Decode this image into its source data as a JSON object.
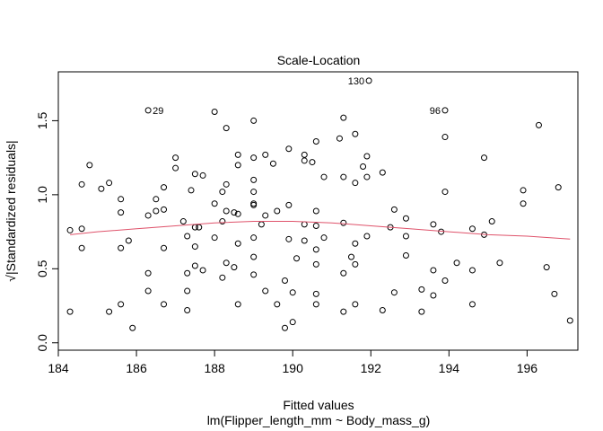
{
  "chart_data": {
    "type": "scatter",
    "title": "Scale-Location",
    "xlabel": "Fitted values",
    "subtitle": "lm(Flipper_length_mm ~ Body_mass_g)",
    "ylabel": "√|Standardized residuals|",
    "xlim": [
      184.0,
      197.3
    ],
    "ylim": [
      -0.05,
      1.83
    ],
    "x_ticks": [
      184,
      186,
      188,
      190,
      192,
      194,
      196
    ],
    "y_ticks": [
      0.0,
      0.5,
      1.0,
      1.5
    ],
    "grid": false,
    "colors": {
      "points": "#000000",
      "smoother": "#DF536B",
      "box": "#000000"
    },
    "labeled_points": [
      {
        "label": "29",
        "x": 186.3,
        "y": 1.57
      },
      {
        "label": "130",
        "x": 191.95,
        "y": 1.77
      },
      {
        "label": "96",
        "x": 193.9,
        "y": 1.57
      }
    ],
    "smoother": [
      [
        184.3,
        0.73
      ],
      [
        185.0,
        0.75
      ],
      [
        186.0,
        0.77
      ],
      [
        187.0,
        0.79
      ],
      [
        188.0,
        0.81
      ],
      [
        189.0,
        0.82
      ],
      [
        190.0,
        0.82
      ],
      [
        191.0,
        0.81
      ],
      [
        192.0,
        0.79
      ],
      [
        193.0,
        0.77
      ],
      [
        194.0,
        0.75
      ],
      [
        195.0,
        0.73
      ],
      [
        196.0,
        0.72
      ],
      [
        197.1,
        0.7
      ]
    ],
    "points": [
      [
        184.3,
        0.21
      ],
      [
        184.3,
        0.76
      ],
      [
        184.6,
        0.77
      ],
      [
        184.6,
        0.64
      ],
      [
        184.6,
        1.07
      ],
      [
        184.8,
        1.2
      ],
      [
        185.1,
        1.04
      ],
      [
        185.3,
        1.08
      ],
      [
        185.3,
        0.21
      ],
      [
        185.6,
        0.26
      ],
      [
        185.6,
        0.64
      ],
      [
        185.6,
        0.88
      ],
      [
        185.6,
        0.97
      ],
      [
        185.8,
        0.69
      ],
      [
        185.9,
        0.1
      ],
      [
        186.3,
        0.86
      ],
      [
        186.3,
        0.47
      ],
      [
        186.3,
        0.35
      ],
      [
        186.5,
        0.89
      ],
      [
        186.5,
        0.97
      ],
      [
        186.7,
        0.9
      ],
      [
        186.7,
        1.05
      ],
      [
        186.7,
        0.64
      ],
      [
        186.7,
        0.26
      ],
      [
        187.0,
        1.25
      ],
      [
        187.0,
        1.18
      ],
      [
        187.2,
        0.82
      ],
      [
        187.3,
        0.72
      ],
      [
        187.3,
        0.47
      ],
      [
        187.3,
        0.35
      ],
      [
        187.3,
        0.22
      ],
      [
        187.4,
        1.03
      ],
      [
        187.5,
        1.14
      ],
      [
        187.5,
        0.78
      ],
      [
        187.5,
        0.52
      ],
      [
        187.5,
        0.65
      ],
      [
        187.6,
        0.78
      ],
      [
        187.7,
        1.13
      ],
      [
        187.7,
        0.49
      ],
      [
        188.0,
        1.56
      ],
      [
        188.0,
        0.94
      ],
      [
        188.0,
        0.71
      ],
      [
        188.2,
        1.02
      ],
      [
        188.2,
        0.82
      ],
      [
        188.2,
        0.44
      ],
      [
        188.3,
        1.45
      ],
      [
        188.3,
        1.07
      ],
      [
        188.3,
        0.89
      ],
      [
        188.3,
        0.54
      ],
      [
        188.5,
        0.88
      ],
      [
        188.5,
        0.51
      ],
      [
        188.6,
        1.27
      ],
      [
        188.6,
        1.2
      ],
      [
        188.6,
        0.87
      ],
      [
        188.6,
        0.67
      ],
      [
        188.6,
        0.26
      ],
      [
        189.0,
        1.5
      ],
      [
        189.0,
        1.25
      ],
      [
        189.0,
        1.1
      ],
      [
        189.0,
        1.02
      ],
      [
        189.0,
        0.94
      ],
      [
        189.0,
        0.93
      ],
      [
        189.0,
        0.71
      ],
      [
        189.0,
        0.58
      ],
      [
        189.0,
        0.46
      ],
      [
        189.2,
        0.8
      ],
      [
        189.3,
        1.27
      ],
      [
        189.3,
        0.86
      ],
      [
        189.3,
        0.35
      ],
      [
        189.5,
        1.21
      ],
      [
        189.6,
        0.89
      ],
      [
        189.6,
        0.26
      ],
      [
        189.8,
        0.42
      ],
      [
        189.8,
        0.1
      ],
      [
        189.9,
        1.31
      ],
      [
        189.9,
        0.93
      ],
      [
        189.9,
        0.7
      ],
      [
        190.0,
        0.14
      ],
      [
        190.0,
        0.34
      ],
      [
        190.1,
        0.57
      ],
      [
        190.3,
        1.27
      ],
      [
        190.3,
        1.23
      ],
      [
        190.3,
        0.8
      ],
      [
        190.3,
        0.69
      ],
      [
        190.5,
        1.22
      ],
      [
        190.6,
        1.36
      ],
      [
        190.6,
        0.89
      ],
      [
        190.6,
        0.79
      ],
      [
        190.6,
        0.63
      ],
      [
        190.6,
        0.53
      ],
      [
        190.6,
        0.33
      ],
      [
        190.6,
        0.26
      ],
      [
        190.8,
        1.12
      ],
      [
        190.8,
        0.71
      ],
      [
        191.2,
        1.38
      ],
      [
        191.3,
        1.52
      ],
      [
        191.3,
        1.12
      ],
      [
        191.3,
        0.81
      ],
      [
        191.3,
        0.47
      ],
      [
        191.3,
        0.21
      ],
      [
        191.5,
        0.58
      ],
      [
        191.6,
        1.41
      ],
      [
        191.6,
        1.08
      ],
      [
        191.6,
        0.67
      ],
      [
        191.6,
        0.53
      ],
      [
        191.6,
        0.26
      ],
      [
        191.8,
        1.19
      ],
      [
        191.9,
        1.26
      ],
      [
        191.9,
        1.12
      ],
      [
        191.9,
        0.72
      ],
      [
        192.3,
        1.15
      ],
      [
        192.3,
        0.22
      ],
      [
        192.5,
        0.78
      ],
      [
        192.6,
        0.9
      ],
      [
        192.6,
        0.34
      ],
      [
        192.9,
        0.84
      ],
      [
        192.9,
        0.72
      ],
      [
        192.9,
        0.59
      ],
      [
        193.3,
        0.36
      ],
      [
        193.3,
        0.21
      ],
      [
        193.6,
        0.8
      ],
      [
        193.6,
        0.49
      ],
      [
        193.6,
        0.32
      ],
      [
        193.8,
        0.75
      ],
      [
        193.9,
        1.39
      ],
      [
        193.9,
        1.02
      ],
      [
        193.9,
        0.42
      ],
      [
        194.2,
        0.54
      ],
      [
        194.6,
        0.77
      ],
      [
        194.6,
        0.49
      ],
      [
        194.6,
        0.26
      ],
      [
        194.9,
        1.25
      ],
      [
        194.9,
        0.73
      ],
      [
        195.1,
        0.82
      ],
      [
        195.3,
        0.54
      ],
      [
        195.9,
        1.03
      ],
      [
        195.9,
        0.94
      ],
      [
        196.3,
        1.47
      ],
      [
        196.5,
        0.51
      ],
      [
        196.7,
        0.33
      ],
      [
        196.8,
        1.05
      ],
      [
        197.1,
        0.15
      ]
    ]
  }
}
